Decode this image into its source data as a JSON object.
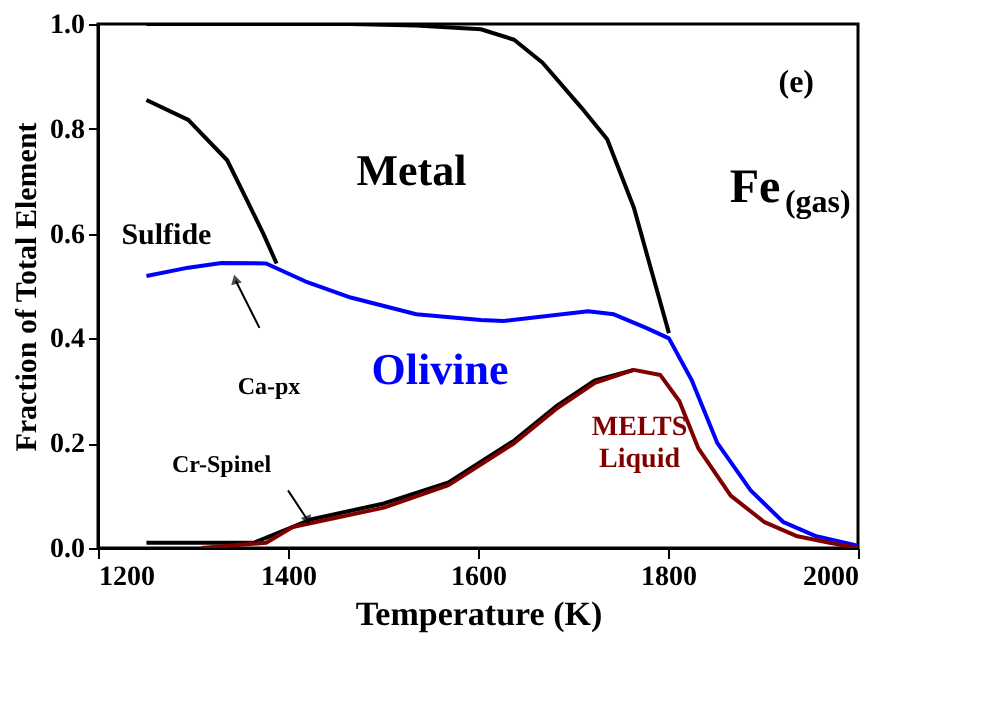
{
  "chart_data": {
    "type": "line",
    "xlabel": "Temperature (K)",
    "ylabel": "Fraction of Total Element",
    "xlim": [
      1200,
      2000
    ],
    "xticks": [
      1200,
      1400,
      1600,
      1800,
      2000
    ],
    "ylim": [
      0,
      1.0
    ],
    "yticks": [
      {
        "value": 0,
        "label": "0.0"
      },
      {
        "value": 0.2,
        "label": "0.2"
      },
      {
        "value": 0.4,
        "label": "0.4"
      },
      {
        "value": 0.6,
        "label": "0.6"
      },
      {
        "value": 0.8,
        "label": "0.8"
      },
      {
        "value": 1.0,
        "label": "1.0"
      }
    ],
    "marker": "none",
    "line_style": "solid",
    "annotations": [
      "Metal",
      "Fe$_{(gas)}$",
      "(e)",
      "Sulfide",
      "Ca-px",
      "Olivine",
      "Cr-Spinel",
      "MELTS Liquid"
    ],
    "series": [
      {
        "color": "#000000",
        "x": [
          1251,
          1466,
          1535,
          1603,
          1638,
          1668,
          1709,
          1736,
          1764,
          1784,
          1801
        ],
        "values": [
          1.0,
          1.0,
          0.997,
          0.99,
          0.97,
          0.926,
          0.84,
          0.78,
          0.65,
          0.52,
          0.41
        ]
      },
      {
        "color": "#000000",
        "x": [
          1251,
          1295,
          1336,
          1357,
          1374,
          1388
        ],
        "values": [
          0.855,
          0.817,
          0.74,
          0.663,
          0.6,
          0.543
        ]
      },
      {
        "color": "#0000ff",
        "x": [
          1251,
          1295,
          1330,
          1377,
          1418,
          1466,
          1535,
          1603,
          1627,
          1716,
          1743,
          1777,
          1801,
          1825,
          1852,
          1887,
          1921,
          1955,
          2000
        ],
        "values": [
          0.519,
          0.535,
          0.544,
          0.543,
          0.509,
          0.478,
          0.446,
          0.435,
          0.433,
          0.452,
          0.446,
          0.42,
          0.4,
          0.32,
          0.2,
          0.11,
          0.05,
          0.023,
          0.004
        ]
      },
      {
        "color": "#000000",
        "x": [
          1251,
          1364,
          1391,
          1425,
          1501,
          1569,
          1638,
          1682,
          1723,
          1764
        ],
        "values": [
          0.01,
          0.01,
          0.03,
          0.055,
          0.085,
          0.125,
          0.205,
          0.27,
          0.32,
          0.34
        ]
      },
      {
        "color": "#800000",
        "x": [
          1309,
          1377,
          1405,
          1501,
          1569,
          1638,
          1682,
          1723,
          1764,
          1792,
          1812,
          1832,
          1866,
          1901,
          1935,
          1970,
          2000
        ],
        "values": [
          0.0,
          0.01,
          0.04,
          0.077,
          0.12,
          0.2,
          0.265,
          0.315,
          0.34,
          0.33,
          0.28,
          0.19,
          0.1,
          0.05,
          0.023,
          0.01,
          0.0
        ]
      }
    ]
  }
}
